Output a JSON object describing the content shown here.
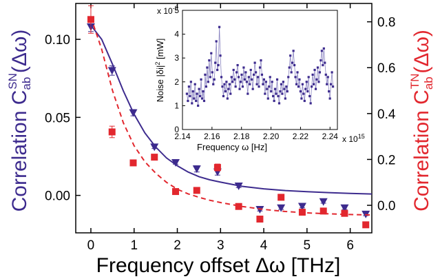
{
  "chart_data": [
    {
      "type": "scatter",
      "xlabel": "Frequency offset Δω [THz]",
      "ylabel_left": {
        "prefix": "Correlation C",
        "sub": "ab",
        "sup": "SN",
        "suffix": "(Δω)"
      },
      "ylabel_right": {
        "prefix": "Correlation C",
        "sub": "ab",
        "sup": "TN",
        "suffix": "(Δω)"
      },
      "xlim": [
        -0.35,
        6.5
      ],
      "ylim_left": [
        -0.024,
        0.123
      ],
      "ylim_right": [
        -0.12,
        0.88
      ],
      "x_ticks": [
        "0",
        "1",
        "2",
        "3",
        "4",
        "5",
        "6"
      ],
      "y_left_ticks": [
        "0.00",
        "0.05",
        "0.10"
      ],
      "y_right_ticks": [
        "0.0",
        "0.2",
        "0.4",
        "0.6",
        "0.8"
      ],
      "colors": {
        "sn": "#3d2b8e",
        "tn": "#e2272e"
      },
      "series": [
        {
          "axis": "left",
          "marker": "triangle-down",
          "x": [
            0,
            0.49,
            0.98,
            1.47,
            1.96,
            2.45,
            2.93,
            3.42,
            3.91,
            4.4,
            4.89,
            5.38,
            5.87,
            6.36
          ],
          "y": [
            0.108,
            0.08,
            0.053,
            0.031,
            0.021,
            0.017,
            0.015,
            0.006,
            -0.009,
            -0.008,
            -0.007,
            -0.004,
            -0.008,
            -0.012
          ],
          "err": [
            0.003,
            0.003,
            0.002,
            0.001,
            0.001,
            0.002,
            0.002,
            0.001,
            0.001,
            0.001,
            0.001,
            0.001,
            0.001,
            0.001
          ]
        },
        {
          "axis": "right",
          "marker": "square",
          "x": [
            0,
            0.49,
            0.98,
            1.47,
            1.96,
            2.45,
            2.93,
            3.42,
            3.91,
            4.4,
            4.89,
            5.38,
            5.87,
            6.36
          ],
          "y": [
            0.81,
            0.32,
            0.185,
            0.21,
            0.06,
            0.065,
            0.165,
            -0.005,
            -0.06,
            0.035,
            -0.03,
            -0.025,
            -0.035,
            -0.085
          ],
          "err": [
            0.06,
            0.025,
            0.01,
            0.01,
            0.01,
            0.01,
            0.015,
            0.01,
            0.01,
            0.01,
            0.01,
            0.01,
            0.01,
            0.01
          ]
        },
        {
          "axis": "left",
          "style": "solid-fit",
          "x": [
            0,
            0.25,
            0.5,
            0.75,
            1,
            1.25,
            1.5,
            1.75,
            2,
            2.25,
            2.5,
            2.75,
            3,
            3.5,
            4,
            4.5,
            5,
            5.5,
            6,
            6.5
          ],
          "y": [
            0.109,
            0.1,
            0.084,
            0.067,
            0.052,
            0.04,
            0.031,
            0.024,
            0.019,
            0.015,
            0.012,
            0.01,
            0.0085,
            0.0058,
            0.0042,
            0.0031,
            0.0024,
            0.0018,
            0.0013,
            0.0009
          ]
        },
        {
          "axis": "right",
          "style": "dashed-fit",
          "x": [
            0,
            0.25,
            0.5,
            0.75,
            1,
            1.25,
            1.5,
            1.75,
            2,
            2.25,
            2.5,
            2.75,
            3,
            3.5,
            4,
            4.5,
            5,
            5.5,
            6,
            6.5
          ],
          "y": [
            0.82,
            0.68,
            0.5,
            0.36,
            0.26,
            0.19,
            0.14,
            0.1,
            0.07,
            0.05,
            0.035,
            0.022,
            0.012,
            -0.005,
            -0.018,
            -0.027,
            -0.033,
            -0.037,
            -0.04,
            -0.042
          ]
        }
      ]
    },
    {
      "type": "line",
      "xlabel": "Frequency ω [Hz]",
      "ylabel": {
        "prefix": "Noise |δi|",
        "sup": "2",
        "suffix": " [mW]"
      },
      "x_exponent": "x 10",
      "x_exponent_power": "15",
      "y_exponent": "x 10",
      "y_exponent_power": "-8",
      "xlim": [
        2.14,
        2.245
      ],
      "ylim": [
        0,
        5
      ],
      "x_ticks": [
        "2.14",
        "2.16",
        "2.18",
        "2.20",
        "2.22",
        "2.24"
      ],
      "y_ticks": [
        "0",
        "1",
        "2",
        "3",
        "4",
        "5"
      ],
      "color": "#3d2b8e",
      "noise_values": [
        1.5,
        1.2,
        1.8,
        1.4,
        2.0,
        1.1,
        1.6,
        1.3,
        1.9,
        1.2,
        1.5,
        1.0,
        1.7,
        1.4,
        2.1,
        1.3,
        1.6,
        1.2,
        2.3,
        1.8,
        2.6,
        2.0,
        2.9,
        2.2,
        3.2,
        2.4,
        1.9,
        2.1,
        2.8,
        3.7,
        2.5,
        2.7,
        4.3,
        3.1,
        2.2,
        1.8,
        1.4,
        1.9,
        1.6,
        2.0,
        1.3,
        1.7,
        1.9,
        1.5,
        2.2,
        2.0,
        2.5,
        2.1,
        1.8,
        2.4,
        2.7,
        2.2,
        1.7,
        2.0,
        2.3,
        1.8,
        2.6,
        2.1,
        2.4,
        2.0,
        1.5,
        2.2,
        1.9,
        2.5,
        2.1,
        1.7,
        2.3,
        2.8,
        2.4,
        1.9,
        2.2,
        1.8,
        2.6,
        2.9,
        2.3,
        1.9,
        2.1,
        1.5,
        2.0,
        1.7,
        1.3,
        1.8,
        2.2,
        1.6,
        2.0,
        1.4,
        1.2,
        1.7,
        1.5,
        2.1,
        1.4,
        1.1,
        1.6,
        1.9,
        1.5,
        2.0,
        1.7,
        1.3,
        1.8,
        1.6,
        2.2,
        2.6,
        3.1,
        2.4,
        2.8,
        3.3,
        2.7,
        2.2,
        1.9,
        2.4,
        1.8,
        2.1,
        1.6,
        1.3,
        1.9,
        1.5,
        1.2,
        1.7,
        2.0,
        1.6,
        2.2,
        1.4,
        1.1,
        1.8,
        2.3,
        1.9,
        2.5,
        1.7,
        2.1,
        2.6,
        2.0,
        2.4,
        2.9,
        3.3,
        2.7,
        3.4,
        2.8,
        2.3,
        1.9,
        2.2,
        1.6,
        1.3,
        1.9,
        2.4,
        1.8
      ]
    }
  ]
}
